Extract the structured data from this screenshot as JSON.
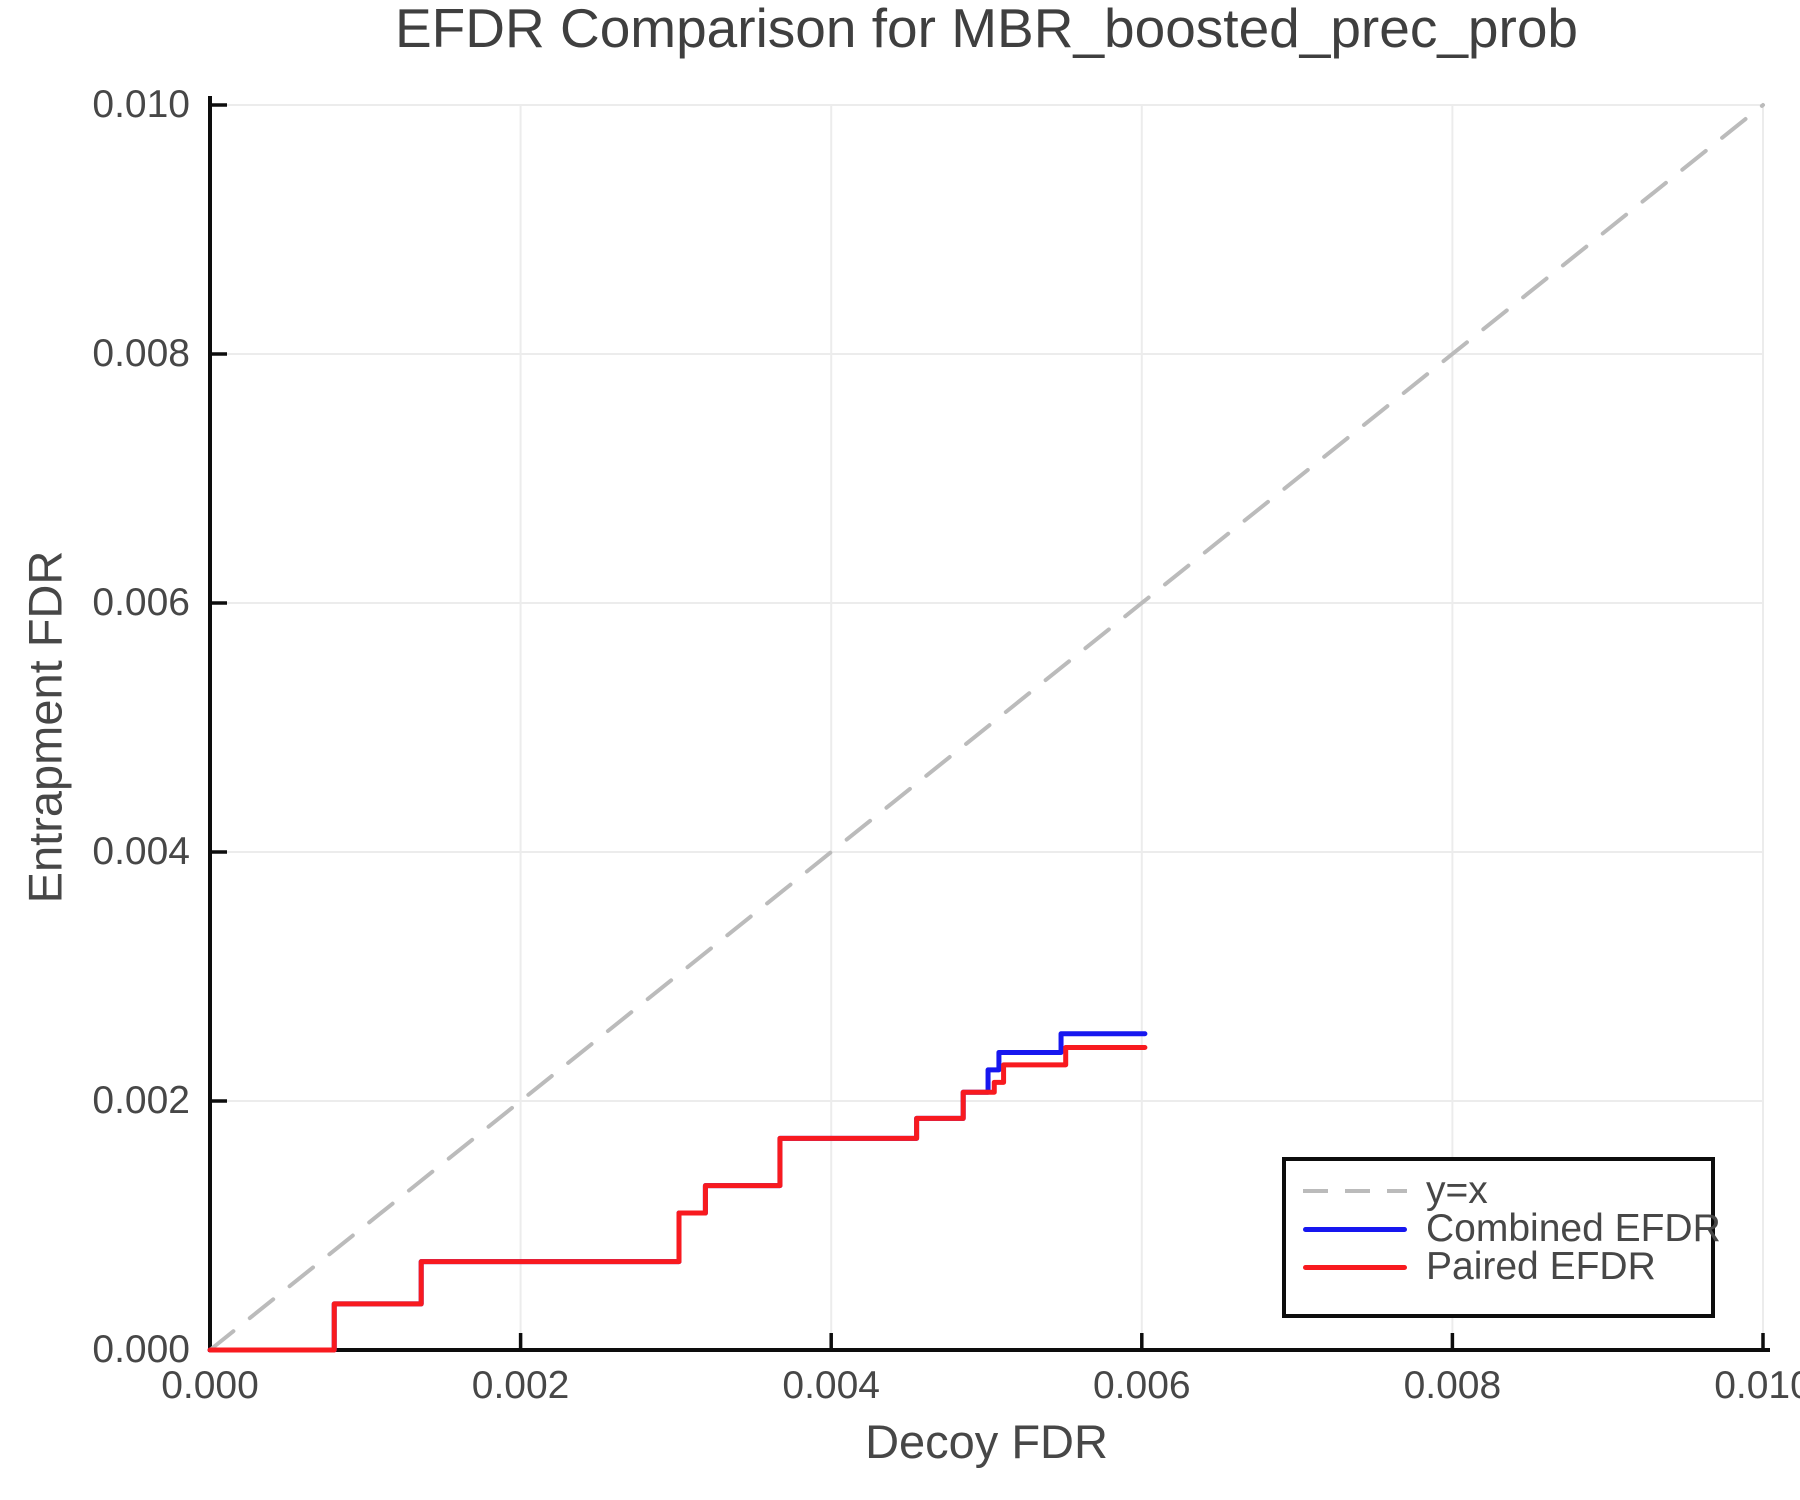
{
  "figure": {
    "background": "#ffffff"
  },
  "chart_data": {
    "type": "line",
    "title": "EFDR Comparison for MBR_boosted_prec_prob",
    "xlabel": "Decoy FDR",
    "ylabel": "Entrapment FDR",
    "xlim": [
      0.0,
      0.01
    ],
    "ylim": [
      0.0,
      0.01
    ],
    "grid": true,
    "legend_position": "lower right",
    "xticks": {
      "values": [
        0.0,
        0.002,
        0.004,
        0.006,
        0.008,
        0.01
      ],
      "labels": [
        "0.000",
        "0.002",
        "0.004",
        "0.006",
        "0.008",
        "0.010"
      ]
    },
    "yticks": {
      "values": [
        0.0,
        0.002,
        0.004,
        0.006,
        0.008,
        0.01
      ],
      "labels": [
        "0.000",
        "0.002",
        "0.004",
        "0.006",
        "0.008",
        "0.010"
      ]
    },
    "colors": {
      "text": "#474747",
      "title_text": "#3f3f3f",
      "grid": "#ececec",
      "spine": "#0d0d0d",
      "legend_border": "#0d0d0d"
    },
    "series": [
      {
        "name": "y=x",
        "style": "dashed",
        "color": "#bbbbbb",
        "width": 4,
        "points": [
          [
            0.0,
            0.0
          ],
          [
            0.01,
            0.01
          ]
        ]
      },
      {
        "name": "Combined EFDR",
        "style": "solid",
        "color": "#1717ef",
        "width": 5,
        "points": [
          [
            0.0,
            0.0
          ],
          [
            0.0008,
            0.0
          ],
          [
            0.0008,
            0.00037
          ],
          [
            0.00136,
            0.00037
          ],
          [
            0.00136,
            0.00071
          ],
          [
            0.00302,
            0.00071
          ],
          [
            0.00302,
            0.0011
          ],
          [
            0.00319,
            0.0011
          ],
          [
            0.00319,
            0.00132
          ],
          [
            0.00367,
            0.00132
          ],
          [
            0.00367,
            0.0017
          ],
          [
            0.00455,
            0.0017
          ],
          [
            0.00455,
            0.00186
          ],
          [
            0.00485,
            0.00186
          ],
          [
            0.00485,
            0.00207
          ],
          [
            0.00501,
            0.00207
          ],
          [
            0.00501,
            0.00225
          ],
          [
            0.00508,
            0.00225
          ],
          [
            0.00508,
            0.00239
          ],
          [
            0.00548,
            0.00239
          ],
          [
            0.00548,
            0.00254
          ],
          [
            0.00602,
            0.00254
          ]
        ]
      },
      {
        "name": "Paired EFDR",
        "style": "solid",
        "color": "#f81a1f",
        "width": 5,
        "points": [
          [
            0.0,
            0.0
          ],
          [
            0.0008,
            0.0
          ],
          [
            0.0008,
            0.00037
          ],
          [
            0.00136,
            0.00037
          ],
          [
            0.00136,
            0.00071
          ],
          [
            0.00302,
            0.00071
          ],
          [
            0.00302,
            0.0011
          ],
          [
            0.00319,
            0.0011
          ],
          [
            0.00319,
            0.00132
          ],
          [
            0.00367,
            0.00132
          ],
          [
            0.00367,
            0.0017
          ],
          [
            0.00455,
            0.0017
          ],
          [
            0.00455,
            0.00186
          ],
          [
            0.00485,
            0.00186
          ],
          [
            0.00485,
            0.00207
          ],
          [
            0.00505,
            0.00207
          ],
          [
            0.00505,
            0.00215
          ],
          [
            0.00511,
            0.00215
          ],
          [
            0.00511,
            0.00229
          ],
          [
            0.00551,
            0.00229
          ],
          [
            0.00551,
            0.00243
          ],
          [
            0.00602,
            0.00243
          ]
        ]
      }
    ]
  }
}
